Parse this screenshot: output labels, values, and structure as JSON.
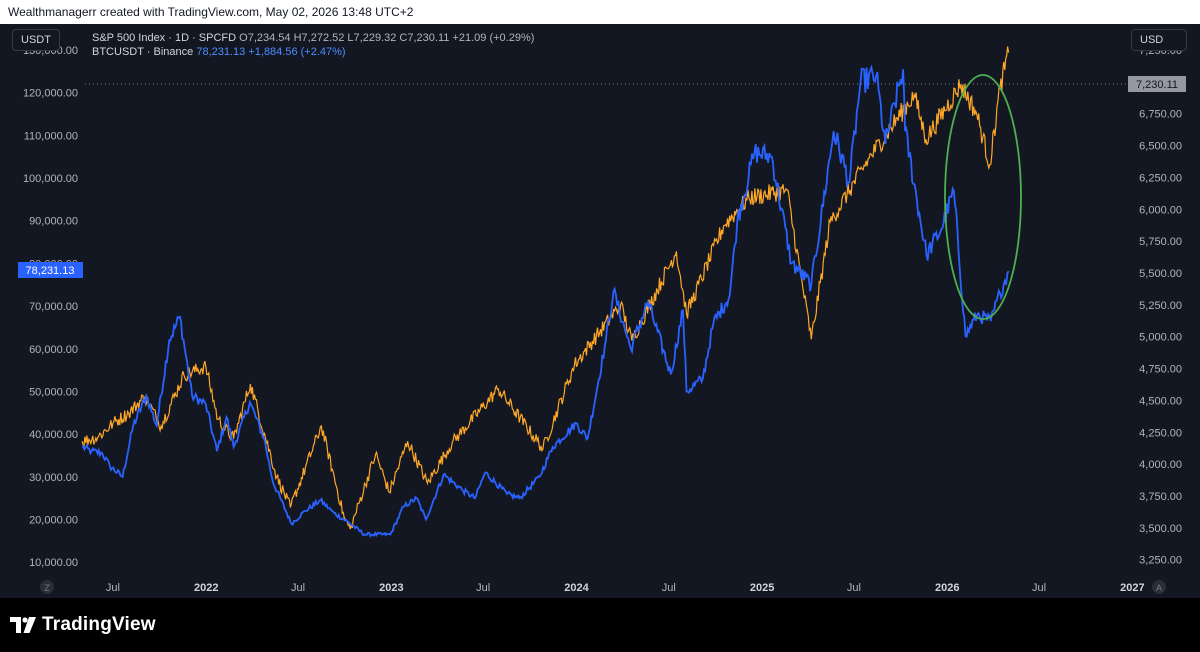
{
  "attribution": "Wealthmanagerr created with TradingView.com, May 02, 2026 13:48 UTC+2",
  "left_currency": "USDT",
  "right_currency": "USD",
  "legend": {
    "sp_title": "S&P 500 Index · 1D · SPCFD",
    "sp_o": "O7,234.54",
    "sp_h": "H7,272.52",
    "sp_l": "L7,229.32",
    "sp_c": "C7,230.11",
    "sp_chg": "+21.09 (+0.29%)",
    "btc_title": "BTCUSDT · Binance",
    "btc_price": "78,231.13",
    "btc_chg": "+1,884.56 (+2.47%)"
  },
  "btc_last_label": "78,231.13",
  "sp_last_label": "7,230.11",
  "brand": "TradingView",
  "corner_left": "Z",
  "corner_right": "A",
  "colors": {
    "btc": "#2962ff",
    "sp": "#ffa726",
    "background": "#131722",
    "circle": "#4caf50"
  },
  "chart_data": {
    "type": "line",
    "x_ticks": [
      "Jul",
      "2022",
      "Jul",
      "2023",
      "Jul",
      "2024",
      "Jul",
      "2025",
      "Jul",
      "2026",
      "Jul",
      "2027"
    ],
    "left_axis": {
      "ticks": [
        "10,000.00",
        "20,000.00",
        "30,000.00",
        "40,000.00",
        "50,000.00",
        "60,000.00",
        "70,000.00",
        "80,000.00",
        "90,000.00",
        "100,000.00",
        "110,000.00",
        "120,000.00",
        "130,000.00"
      ],
      "range": [
        7000,
        130000
      ]
    },
    "right_axis": {
      "ticks": [
        "3,250.00",
        "3,500.00",
        "3,750.00",
        "4,000.00",
        "4,250.00",
        "4,500.00",
        "4,750.00",
        "5,000.00",
        "5,250.00",
        "5,500.00",
        "5,750.00",
        "6,000.00",
        "6,250.00",
        "6,500.00",
        "6,750.00",
        "7,000.00",
        "7,250.00"
      ],
      "range": [
        3130,
        7250
      ]
    },
    "series": [
      {
        "name": "BTCUSDT · Binance",
        "axis": "left",
        "points": [
          [
            "2021-05-01",
            37000
          ],
          [
            "2021-05-20",
            36000
          ],
          [
            "2021-06-10",
            35500
          ],
          [
            "2021-06-25",
            32500
          ],
          [
            "2021-07-20",
            30000
          ],
          [
            "2021-08-10",
            42000
          ],
          [
            "2021-09-05",
            49000
          ],
          [
            "2021-09-25",
            42000
          ],
          [
            "2021-10-20",
            62000
          ],
          [
            "2021-11-10",
            67500
          ],
          [
            "2021-12-04",
            49000
          ],
          [
            "2021-12-31",
            47000
          ],
          [
            "2022-01-22",
            36000
          ],
          [
            "2022-02-10",
            44000
          ],
          [
            "2022-02-24",
            37000
          ],
          [
            "2022-03-28",
            47500
          ],
          [
            "2022-04-25",
            39000
          ],
          [
            "2022-05-12",
            29000
          ],
          [
            "2022-06-18",
            19000
          ],
          [
            "2022-07-15",
            22000
          ],
          [
            "2022-08-14",
            24500
          ],
          [
            "2022-09-10",
            21500
          ],
          [
            "2022-10-10",
            19200
          ],
          [
            "2022-11-09",
            16500
          ],
          [
            "2022-12-30",
            16500
          ],
          [
            "2023-01-25",
            23000
          ],
          [
            "2023-02-20",
            25000
          ],
          [
            "2023-03-10",
            20000
          ],
          [
            "2023-04-14",
            30500
          ],
          [
            "2023-05-20",
            27000
          ],
          [
            "2023-06-15",
            25000
          ],
          [
            "2023-07-05",
            31000
          ],
          [
            "2023-08-17",
            26000
          ],
          [
            "2023-09-11",
            25000
          ],
          [
            "2023-10-20",
            30000
          ],
          [
            "2023-11-15",
            37000
          ],
          [
            "2023-12-31",
            42500
          ],
          [
            "2024-01-23",
            39000
          ],
          [
            "2024-02-28",
            62000
          ],
          [
            "2024-03-14",
            73500
          ],
          [
            "2024-04-17",
            60000
          ],
          [
            "2024-05-21",
            71000
          ],
          [
            "2024-07-05",
            54000
          ],
          [
            "2024-07-29",
            69000
          ],
          [
            "2024-08-05",
            50000
          ],
          [
            "2024-09-06",
            53000
          ],
          [
            "2024-09-27",
            66000
          ],
          [
            "2024-10-29",
            72500
          ],
          [
            "2024-11-13",
            90000
          ],
          [
            "2024-12-17",
            106000
          ],
          [
            "2025-01-20",
            105000
          ],
          [
            "2025-02-28",
            80000
          ],
          [
            "2025-04-08",
            75000
          ],
          [
            "2025-05-22",
            111000
          ],
          [
            "2025-06-22",
            99000
          ],
          [
            "2025-07-14",
            122500
          ],
          [
            "2025-08-14",
            124000
          ],
          [
            "2025-09-01",
            108000
          ],
          [
            "2025-10-06",
            125500
          ],
          [
            "2025-10-10",
            111000
          ],
          [
            "2025-11-21",
            82000
          ],
          [
            "2025-12-20",
            88000
          ],
          [
            "2026-01-14",
            97000
          ],
          [
            "2026-02-06",
            63000
          ],
          [
            "2026-03-01",
            68000
          ],
          [
            "2026-03-28",
            66500
          ],
          [
            "2026-04-15",
            73000
          ],
          [
            "2026-05-02",
            78231
          ]
        ]
      },
      {
        "name": "S&P 500 Index · 1D · SPCFD",
        "axis": "right",
        "points": [
          [
            "2021-05-01",
            4180
          ],
          [
            "2021-06-01",
            4210
          ],
          [
            "2021-07-01",
            4320
          ],
          [
            "2021-08-01",
            4400
          ],
          [
            "2021-09-02",
            4530
          ],
          [
            "2021-10-04",
            4300
          ],
          [
            "2021-11-18",
            4700
          ],
          [
            "2021-12-31",
            4766
          ],
          [
            "2022-01-24",
            4350
          ],
          [
            "2022-02-24",
            4200
          ],
          [
            "2022-03-29",
            4630
          ],
          [
            "2022-05-20",
            3900
          ],
          [
            "2022-06-16",
            3660
          ],
          [
            "2022-08-16",
            4300
          ],
          [
            "2022-09-30",
            3580
          ],
          [
            "2022-10-12",
            3490
          ],
          [
            "2022-12-01",
            4080
          ],
          [
            "2022-12-28",
            3780
          ],
          [
            "2023-02-02",
            4180
          ],
          [
            "2023-03-13",
            3850
          ],
          [
            "2023-05-01",
            4170
          ],
          [
            "2023-07-31",
            4590
          ],
          [
            "2023-10-27",
            4120
          ],
          [
            "2023-12-28",
            4780
          ],
          [
            "2024-03-28",
            5250
          ],
          [
            "2024-04-19",
            4970
          ],
          [
            "2024-07-16",
            5670
          ],
          [
            "2024-08-05",
            5180
          ],
          [
            "2024-10-17",
            5870
          ],
          [
            "2024-12-06",
            6090
          ],
          [
            "2025-02-19",
            6150
          ],
          [
            "2025-04-08",
            4980
          ],
          [
            "2025-05-15",
            5900
          ],
          [
            "2025-07-31",
            6400
          ],
          [
            "2025-10-28",
            6900
          ],
          [
            "2025-11-20",
            6550
          ],
          [
            "2026-01-28",
            6980
          ],
          [
            "2026-02-28",
            6750
          ],
          [
            "2026-03-26",
            6350
          ],
          [
            "2026-04-15",
            6950
          ],
          [
            "2026-05-02",
            7230
          ]
        ]
      }
    ]
  }
}
